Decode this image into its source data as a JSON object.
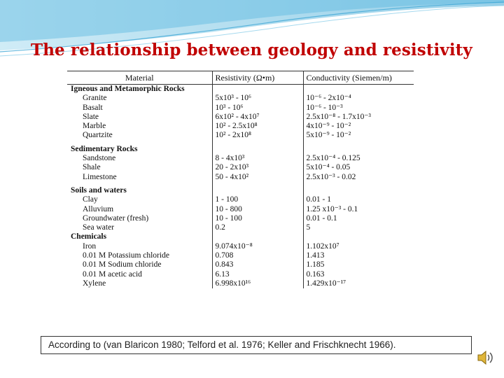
{
  "title": "The  relationship between geology and resistivity",
  "table": {
    "headers": [
      "Material",
      "Resistivity  (Ω•m)",
      "Conductivity  (Siemen/m)"
    ],
    "groups": [
      {
        "name": "Igneous and Metamorphic Rocks",
        "rows": [
          {
            "material": "Granite",
            "resistivity": "5x10³ - 10⁶",
            "conductivity": "10⁻⁶ - 2x10⁻⁴"
          },
          {
            "material": "Basalt",
            "resistivity": "10³ - 10⁶",
            "conductivity": "10⁻⁶ - 10⁻³"
          },
          {
            "material": "Slate",
            "resistivity": "6x10² - 4x10⁷",
            "conductivity": "2.5x10⁻⁸ - 1.7x10⁻³"
          },
          {
            "material": "Marble",
            "resistivity": "10² - 2.5x10⁸",
            "conductivity": "4x10⁻⁹ - 10⁻²"
          },
          {
            "material": "Quartzite",
            "resistivity": "10² - 2x10⁸",
            "conductivity": "5x10⁻⁹ - 10⁻²"
          }
        ]
      },
      {
        "name": "Sedimentary Rocks",
        "rows": [
          {
            "material": "Sandstone",
            "resistivity": "8 - 4x10³",
            "conductivity": "2.5x10⁻⁴ - 0.125"
          },
          {
            "material": "Shale",
            "resistivity": "20 - 2x10³",
            "conductivity": "5x10⁻⁴ - 0.05"
          },
          {
            "material": "Limestone",
            "resistivity": "50 - 4x10²",
            "conductivity": "2.5x10⁻³ - 0.02"
          }
        ]
      },
      {
        "name": "Soils and waters",
        "rows": [
          {
            "material": "Clay",
            "resistivity": "1 - 100",
            "conductivity": "0.01 - 1"
          },
          {
            "material": "Alluvium",
            "resistivity": "10 - 800",
            "conductivity": "1.25 x10⁻³ - 0.1"
          },
          {
            "material": "Groundwater (fresh)",
            "resistivity": "10 - 100",
            "conductivity": "0.01 - 0.1"
          },
          {
            "material": "Sea water",
            "resistivity": "0.2",
            "conductivity": "5"
          }
        ]
      },
      {
        "name": "Chemicals",
        "rows": [
          {
            "material": "Iron",
            "resistivity": "9.074x10⁻⁸",
            "conductivity": "1.102x10⁷"
          },
          {
            "material": "0.01 M Potassium chloride",
            "resistivity": "0.708",
            "conductivity": "1.413"
          },
          {
            "material": "0.01 M Sodium chloride",
            "resistivity": "0.843",
            "conductivity": "1.185"
          },
          {
            "material": "0.01 M acetic acid",
            "resistivity": "6.13",
            "conductivity": "0.163"
          },
          {
            "material": "Xylene",
            "resistivity": "6.998x10¹⁶",
            "conductivity": "1.429x10⁻¹⁷"
          }
        ]
      }
    ]
  },
  "citation": "According to   (van Blaricon 1980; Telford et al. 1976; Keller and Frischknecht 1966).",
  "icons": {
    "decoration": "wave-header",
    "audio": "speaker-icon"
  },
  "colors": {
    "title": "#c00000",
    "wave": "#7ec8e3"
  }
}
